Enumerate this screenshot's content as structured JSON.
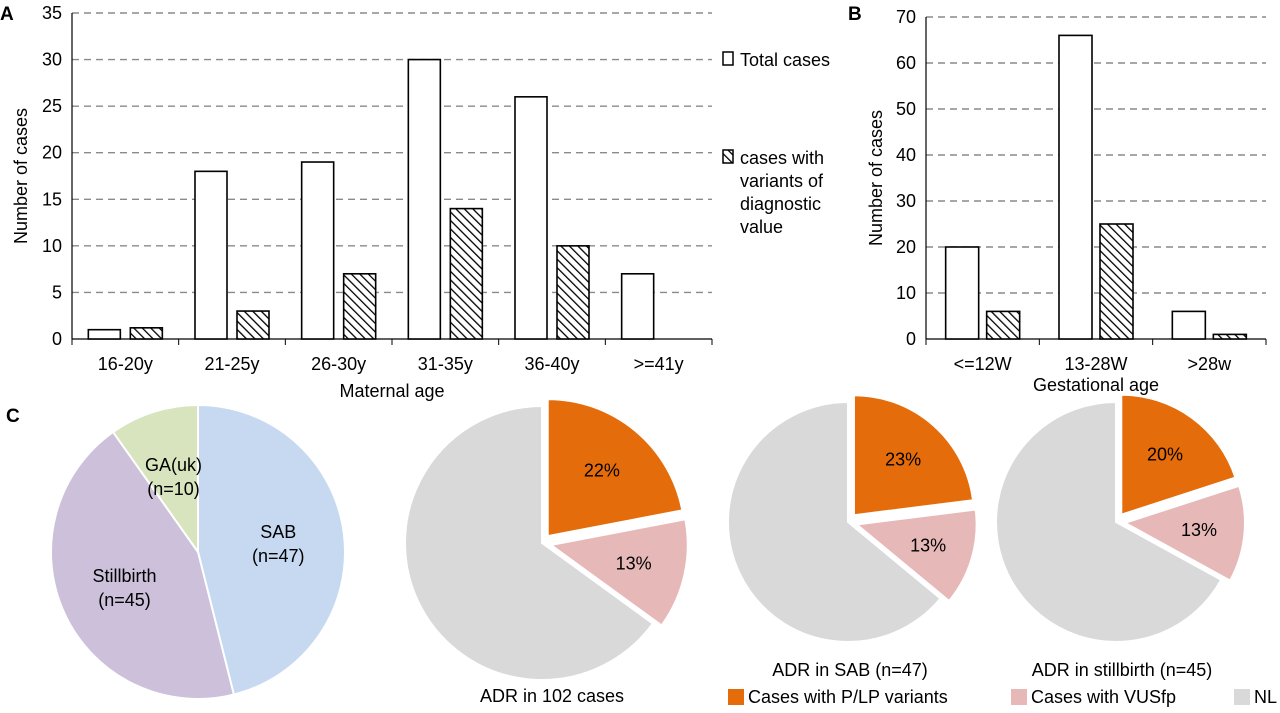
{
  "colors": {
    "total": "#ffffff",
    "hatch": "#000000",
    "grid": "#8a8a8a",
    "plp": "#e46c0a",
    "vus": "#e6b9b8",
    "nl": "#d9d9d9",
    "sab": "#c6d9f0",
    "stillbirth": "#ccc0da",
    "ga": "#d7e4bd"
  },
  "chart_data": [
    {
      "panel": "A",
      "type": "bar",
      "categories": [
        "16-20y",
        "21-25y",
        "26-30y",
        "31-35y",
        "36-40y",
        ">=41y"
      ],
      "series": [
        {
          "name": "Total cases",
          "values": [
            1,
            18,
            19,
            30,
            26,
            7
          ]
        },
        {
          "name": "cases with variants of diagnostic value",
          "values": [
            1.2,
            3,
            7,
            14,
            10,
            0
          ]
        }
      ],
      "xlabel": "Maternal age",
      "ylabel": "Number of cases",
      "ylim": [
        0,
        35
      ],
      "yticks": [
        "0",
        "5",
        "10",
        "15",
        "20",
        "25",
        "30",
        "35"
      ],
      "grid": true,
      "legend": {
        "placement": "right",
        "total": "Total cases",
        "variants_lines": [
          "cases with",
          "variants of",
          "diagnostic",
          "value"
        ]
      }
    },
    {
      "panel": "B",
      "type": "bar",
      "categories": [
        "<=12W",
        "13-28W",
        ">28w"
      ],
      "series": [
        {
          "name": "Total cases",
          "values": [
            20,
            66,
            6
          ]
        },
        {
          "name": "cases with variants of diagnostic value",
          "values": [
            6,
            25,
            1
          ]
        }
      ],
      "xlabel": "Gestational age",
      "ylabel": "Number of cases",
      "ylim": [
        0,
        70
      ],
      "yticks": [
        "0",
        "10",
        "20",
        "30",
        "40",
        "50",
        "60",
        "70"
      ],
      "grid": true
    },
    {
      "panel": "C",
      "type": "pie",
      "slices": [
        {
          "label": "SAB",
          "sub": "(n=47)",
          "value": 47,
          "colorKey": "sab"
        },
        {
          "label": "Stillbirth",
          "sub": "(n=45)",
          "value": 45,
          "colorKey": "stillbirth"
        },
        {
          "label": "GA(uk)",
          "sub": "(n=10)",
          "value": 10,
          "colorKey": "ga"
        }
      ]
    },
    {
      "type": "pie",
      "title": "ADR in 102 cases",
      "slices": [
        {
          "label": "22%",
          "value": 22,
          "colorKey": "plp",
          "exploded": true
        },
        {
          "label": "13%",
          "value": 13,
          "colorKey": "vus",
          "exploded": true
        },
        {
          "label": "",
          "value": 65,
          "colorKey": "nl",
          "exploded": false
        }
      ]
    },
    {
      "type": "pie",
      "title": "ADR in SAB (n=47)",
      "slices": [
        {
          "label": "23%",
          "value": 23,
          "colorKey": "plp",
          "exploded": true
        },
        {
          "label": "13%",
          "value": 13,
          "colorKey": "vus",
          "exploded": true
        },
        {
          "label": "",
          "value": 64,
          "colorKey": "nl",
          "exploded": false
        }
      ]
    },
    {
      "type": "pie",
      "title": "ADR in stillbirth (n=45)",
      "slices": [
        {
          "label": "20%",
          "value": 20,
          "colorKey": "plp",
          "exploded": true
        },
        {
          "label": "13%",
          "value": 13,
          "colorKey": "vus",
          "exploded": true
        },
        {
          "label": "",
          "value": 67,
          "colorKey": "nl",
          "exploded": false
        }
      ]
    }
  ],
  "panel_labels": {
    "a": "A",
    "b": "B",
    "c": "C"
  },
  "adr_legend": [
    {
      "label": "Cases with P/LP variants",
      "colorKey": "plp"
    },
    {
      "label": "Cases with VUSfp",
      "colorKey": "vus"
    },
    {
      "label": "NL",
      "colorKey": "nl"
    }
  ]
}
